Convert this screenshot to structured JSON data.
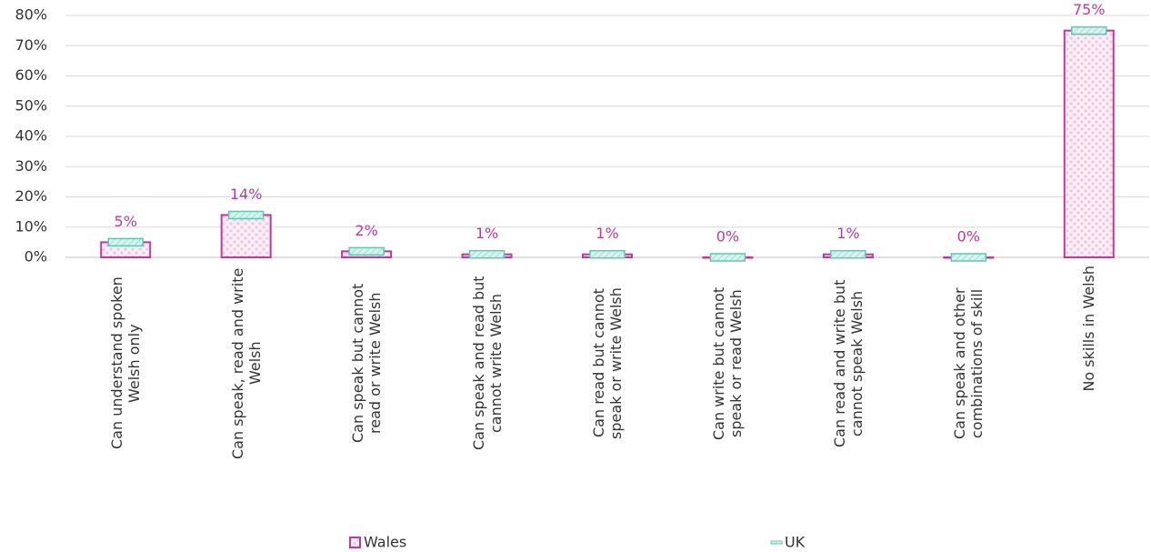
{
  "chart_data": {
    "type": "bar",
    "categories": [
      "Can understand spoken Welsh only",
      "Can speak, read and write Welsh",
      "Can speak but cannot read or write Welsh",
      "Can speak and read but cannot write Welsh",
      "Can read but cannot speak or write Welsh",
      "Can write but cannot speak or read Welsh",
      "Can read and write but cannot speak Welsh",
      "Can speak and other combinations of skill",
      "No skills in Welsh"
    ],
    "series": [
      {
        "name": "Wales",
        "color": "#c0399b",
        "values": [
          5,
          14,
          2,
          1,
          1,
          0,
          1,
          0,
          75
        ],
        "value_labels": [
          "5%",
          "14%",
          "2%",
          "1%",
          "1%",
          "0%",
          "1%",
          "0%",
          "75%"
        ]
      },
      {
        "name": "UK",
        "color": "#5cc9b5",
        "values": [
          5,
          14,
          2,
          1,
          1,
          0,
          1,
          0,
          75
        ]
      }
    ],
    "ylim": [
      0,
      80
    ],
    "yticks": [
      {
        "value": 0,
        "label": "0%"
      },
      {
        "value": 10,
        "label": "10%"
      },
      {
        "value": 20,
        "label": "20%"
      },
      {
        "value": 30,
        "label": "30%"
      },
      {
        "value": 40,
        "label": "40%"
      },
      {
        "value": 50,
        "label": "50%"
      },
      {
        "value": 60,
        "label": "60%"
      },
      {
        "value": 70,
        "label": "70%"
      },
      {
        "value": 80,
        "label": "80%"
      }
    ],
    "grid": true
  }
}
